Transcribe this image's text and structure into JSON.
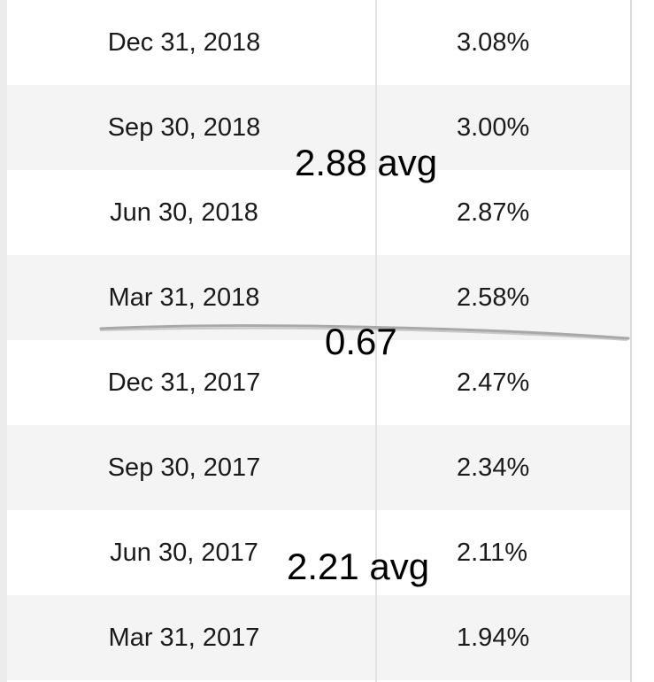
{
  "table": {
    "rows": [
      {
        "date": "Dec 31, 2018",
        "rate": "3.08%"
      },
      {
        "date": "Sep 30, 2018",
        "rate": "3.00%"
      },
      {
        "date": "Jun 30, 2018",
        "rate": "2.87%"
      },
      {
        "date": "Mar 31, 2018",
        "rate": "2.58%"
      },
      {
        "date": "Dec 31, 2017",
        "rate": "2.47%"
      },
      {
        "date": "Sep 30, 2017",
        "rate": "2.34%"
      },
      {
        "date": "Jun 30, 2017",
        "rate": "2.11%"
      },
      {
        "date": "Mar 31, 2017",
        "rate": "1.94%"
      }
    ]
  },
  "annotations": {
    "avg_2018": "2.88 avg",
    "difference": "0.67",
    "avg_2017": "2.21 avg"
  },
  "colors": {
    "stripe": "#f4f4f4",
    "pencil_line": "#9a9a9a"
  }
}
